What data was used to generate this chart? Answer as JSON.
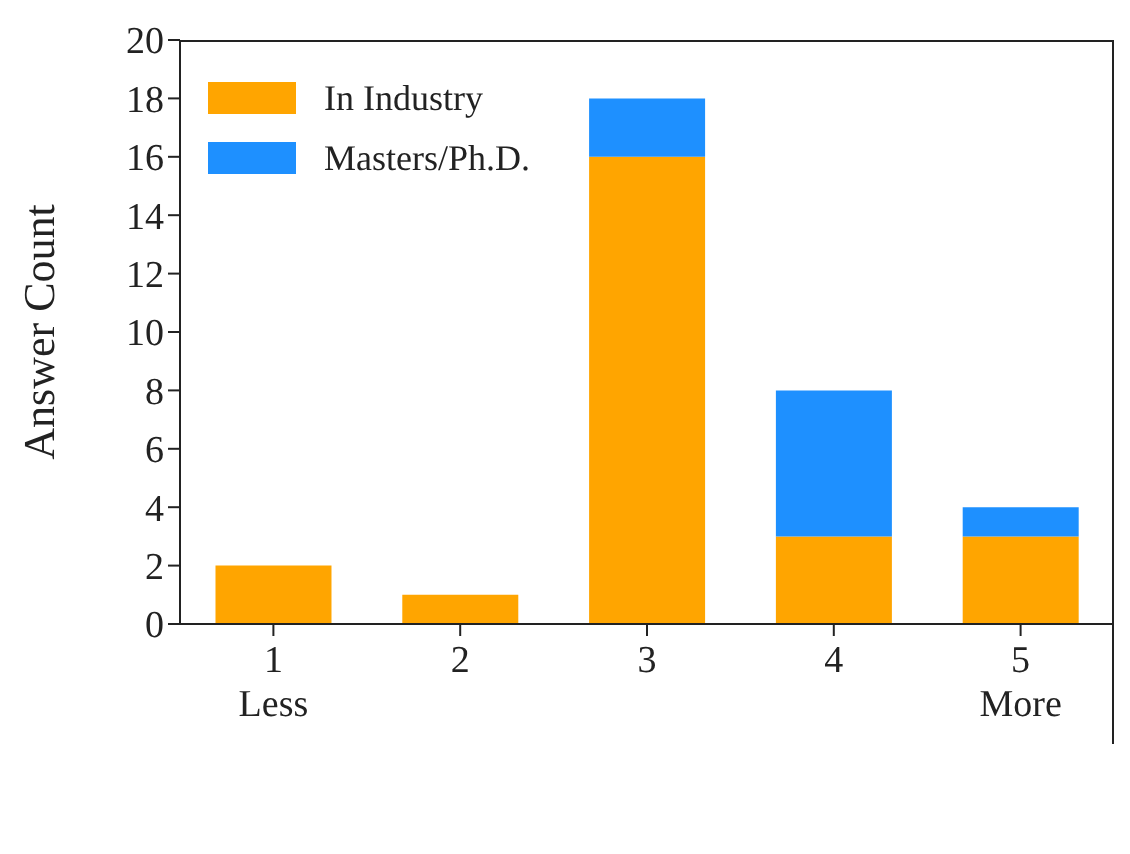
{
  "chart_data": {
    "type": "bar",
    "stacked": true,
    "ylabel": "Answer Count",
    "categories": [
      "1\nLess",
      "2",
      "3",
      "4",
      "5\nMore"
    ],
    "series": [
      {
        "name": "In Industry",
        "color": "#ffa500",
        "values": [
          2,
          1,
          16,
          3,
          3
        ]
      },
      {
        "name": "Masters/Ph.D.",
        "color": "#1e90ff",
        "values": [
          0,
          0,
          2,
          5,
          1
        ]
      }
    ],
    "ylim": [
      0,
      20
    ],
    "yticks": [
      0,
      2,
      4,
      6,
      8,
      10,
      12,
      14,
      16,
      18,
      20
    ],
    "grid": false,
    "legend": "top left"
  }
}
